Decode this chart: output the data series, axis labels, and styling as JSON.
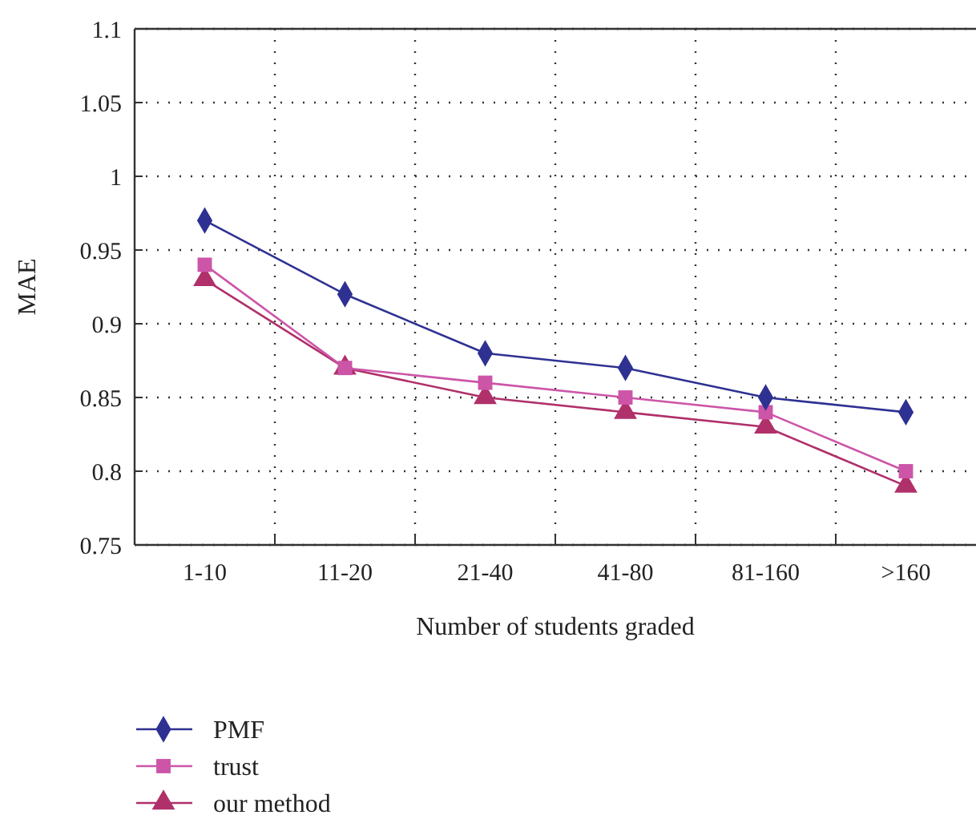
{
  "chart_data": {
    "type": "line",
    "xlabel": "Number of students graded",
    "ylabel": "MAE",
    "categories": [
      "1-10",
      "11-20",
      "21-40",
      "41-80",
      "81-160",
      ">160"
    ],
    "ylim": [
      0.75,
      1.1
    ],
    "yticks": [
      0.75,
      0.8,
      0.85,
      0.9,
      0.95,
      1,
      1.05,
      1.1
    ],
    "grid": true,
    "legend": "bottom",
    "line_style": "solid",
    "series": [
      {
        "name": "PMF",
        "color": "#2e3192",
        "marker": "diamond",
        "values": [
          0.97,
          0.92,
          0.88,
          0.87,
          0.85,
          0.84
        ]
      },
      {
        "name": "trust",
        "color": "#cc55a8",
        "marker": "square",
        "values": [
          0.94,
          0.87,
          0.86,
          0.85,
          0.84,
          0.8
        ]
      },
      {
        "name": "our method",
        "color": "#b0306a",
        "marker": "triangle",
        "values": [
          0.93,
          0.87,
          0.85,
          0.84,
          0.83,
          0.79
        ]
      }
    ]
  }
}
